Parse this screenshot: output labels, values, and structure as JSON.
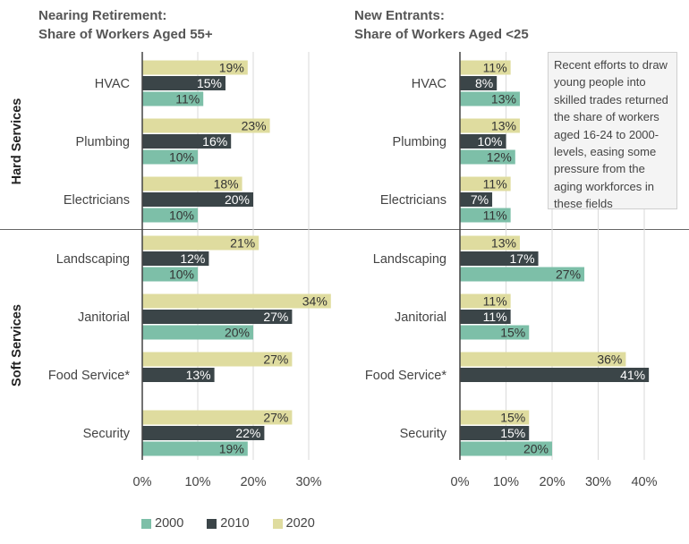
{
  "colors": {
    "2000": "#7dbfa8",
    "2010": "#3b4548",
    "2020": "#dfdc9f"
  },
  "panels": [
    {
      "title_line1": "Nearing Retirement:",
      "title_line2": "Share of Workers Aged 55+"
    },
    {
      "title_line1": "New Entrants:",
      "title_line2": "Share of Workers Aged <25"
    }
  ],
  "groups": [
    {
      "label": "Hard Services"
    },
    {
      "label": "Soft Services"
    }
  ],
  "note": "Recent efforts to draw young people into skilled trades returned the share of workers aged 16-24 to 2000-levels, easing some pressure from the aging workforces in these fields",
  "legend": [
    {
      "label": "2000",
      "color": "#7dbfa8"
    },
    {
      "label": "2010",
      "color": "#3b4548"
    },
    {
      "label": "2020",
      "color": "#dfdc9f"
    }
  ],
  "chart_data": [
    {
      "type": "bar",
      "orientation": "horizontal",
      "title": "Nearing Retirement: Share of Workers Aged 55+",
      "categories": [
        "HVAC",
        "Plumbing",
        "Electricians",
        "Landscaping",
        "Janitorial",
        "Food Service*",
        "Security"
      ],
      "series": [
        {
          "name": "2020",
          "values": [
            19,
            23,
            18,
            21,
            34,
            27,
            27
          ],
          "labels": [
            "19%",
            "23%",
            "18%",
            "21%",
            "34%",
            "27%",
            "27%"
          ]
        },
        {
          "name": "2010",
          "values": [
            15,
            16,
            20,
            12,
            27,
            13,
            22
          ],
          "labels": [
            "15%",
            "16%",
            "20%",
            "12%",
            "27%",
            "13%",
            "22%"
          ]
        },
        {
          "name": "2000",
          "values": [
            11,
            10,
            10,
            10,
            20,
            null,
            19
          ],
          "labels": [
            "11%",
            "10%",
            "10%",
            "10%",
            "20%",
            "",
            "19%"
          ]
        }
      ],
      "xlim": [
        0,
        35
      ],
      "ticks": [
        0,
        10,
        20,
        30
      ],
      "tick_labels": [
        "0%",
        "10%",
        "20%",
        "30%"
      ],
      "grid": true
    },
    {
      "type": "bar",
      "orientation": "horizontal",
      "title": "New Entrants: Share of Workers Aged <25",
      "categories": [
        "HVAC",
        "Plumbing",
        "Electricians",
        "Landscaping",
        "Janitorial",
        "Food Service*",
        "Security"
      ],
      "series": [
        {
          "name": "2020",
          "values": [
            11,
            13,
            11,
            13,
            11,
            36,
            15
          ],
          "labels": [
            "11%",
            "13%",
            "11%",
            "13%",
            "11%",
            "36%",
            "15%"
          ]
        },
        {
          "name": "2010",
          "values": [
            8,
            10,
            7,
            17,
            11,
            41,
            15
          ],
          "labels": [
            "8%",
            "10%",
            "7%",
            "17%",
            "11%",
            "41%",
            "15%"
          ]
        },
        {
          "name": "2000",
          "values": [
            13,
            12,
            11,
            27,
            15,
            null,
            20
          ],
          "labels": [
            "13%",
            "12%",
            "11%",
            "27%",
            "15%",
            "",
            "20%"
          ]
        }
      ],
      "xlim": [
        0,
        45
      ],
      "ticks": [
        0,
        10,
        20,
        30,
        40
      ],
      "tick_labels": [
        "0%",
        "10%",
        "20%",
        "30%",
        "40%"
      ],
      "grid": true
    }
  ]
}
